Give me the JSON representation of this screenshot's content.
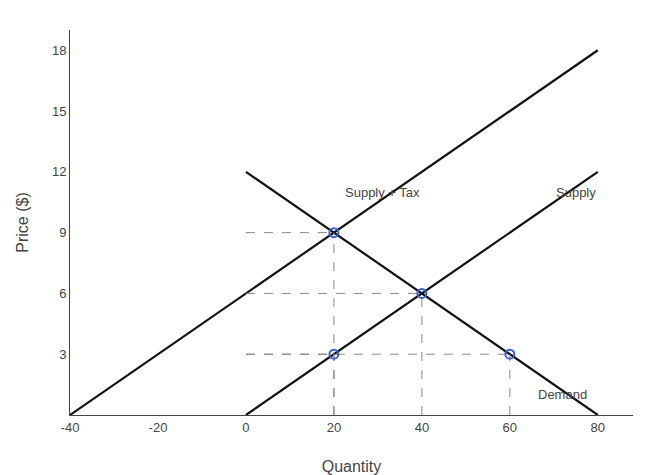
{
  "chart_data": {
    "type": "line",
    "xlabel": "Quantity",
    "ylabel": "Price ($)",
    "xlim": [
      -40,
      88
    ],
    "ylim": [
      0,
      19
    ],
    "xticks": [
      -40,
      -20,
      0,
      20,
      40,
      60,
      80
    ],
    "yticks": [
      3,
      6,
      9,
      12,
      15,
      18
    ],
    "grid": false,
    "series": [
      {
        "type": "line",
        "color": "#111111",
        "line_style": "solid",
        "x": [
          0,
          80
        ],
        "values": [
          0,
          12
        ]
      },
      {
        "type": "line",
        "color": "#111111",
        "line_style": "solid",
        "x": [
          -40,
          80
        ],
        "values": [
          0,
          18
        ]
      },
      {
        "type": "line",
        "color": "#111111",
        "line_style": "solid",
        "x": [
          0,
          80
        ],
        "values": [
          12,
          0
        ]
      },
      {
        "type": "line",
        "color": "#888888",
        "line_style": "dashed",
        "x": [
          20,
          20,
          null,
          0,
          20,
          null,
          40,
          40,
          null,
          0,
          40,
          null,
          20,
          20,
          null,
          0,
          20,
          null,
          60,
          60,
          null,
          0,
          60
        ],
        "values": [
          0,
          9,
          null,
          9,
          9,
          null,
          0,
          6,
          null,
          6,
          6,
          null,
          0,
          3,
          null,
          3,
          3,
          null,
          0,
          3,
          null,
          3,
          3
        ]
      },
      {
        "type": "scatter",
        "color": "#3a5fcd",
        "marker": "circle-open",
        "x": [
          20,
          40,
          20,
          60
        ],
        "values": [
          9,
          6,
          3,
          3
        ]
      }
    ],
    "annotations": [
      {
        "text": "Supply",
        "x": 75,
        "y": 11.0
      },
      {
        "text": "Supply + Tax",
        "x": 31,
        "y": 11.0
      },
      {
        "text": "Demand",
        "x": 72,
        "y": 1.0
      }
    ]
  }
}
